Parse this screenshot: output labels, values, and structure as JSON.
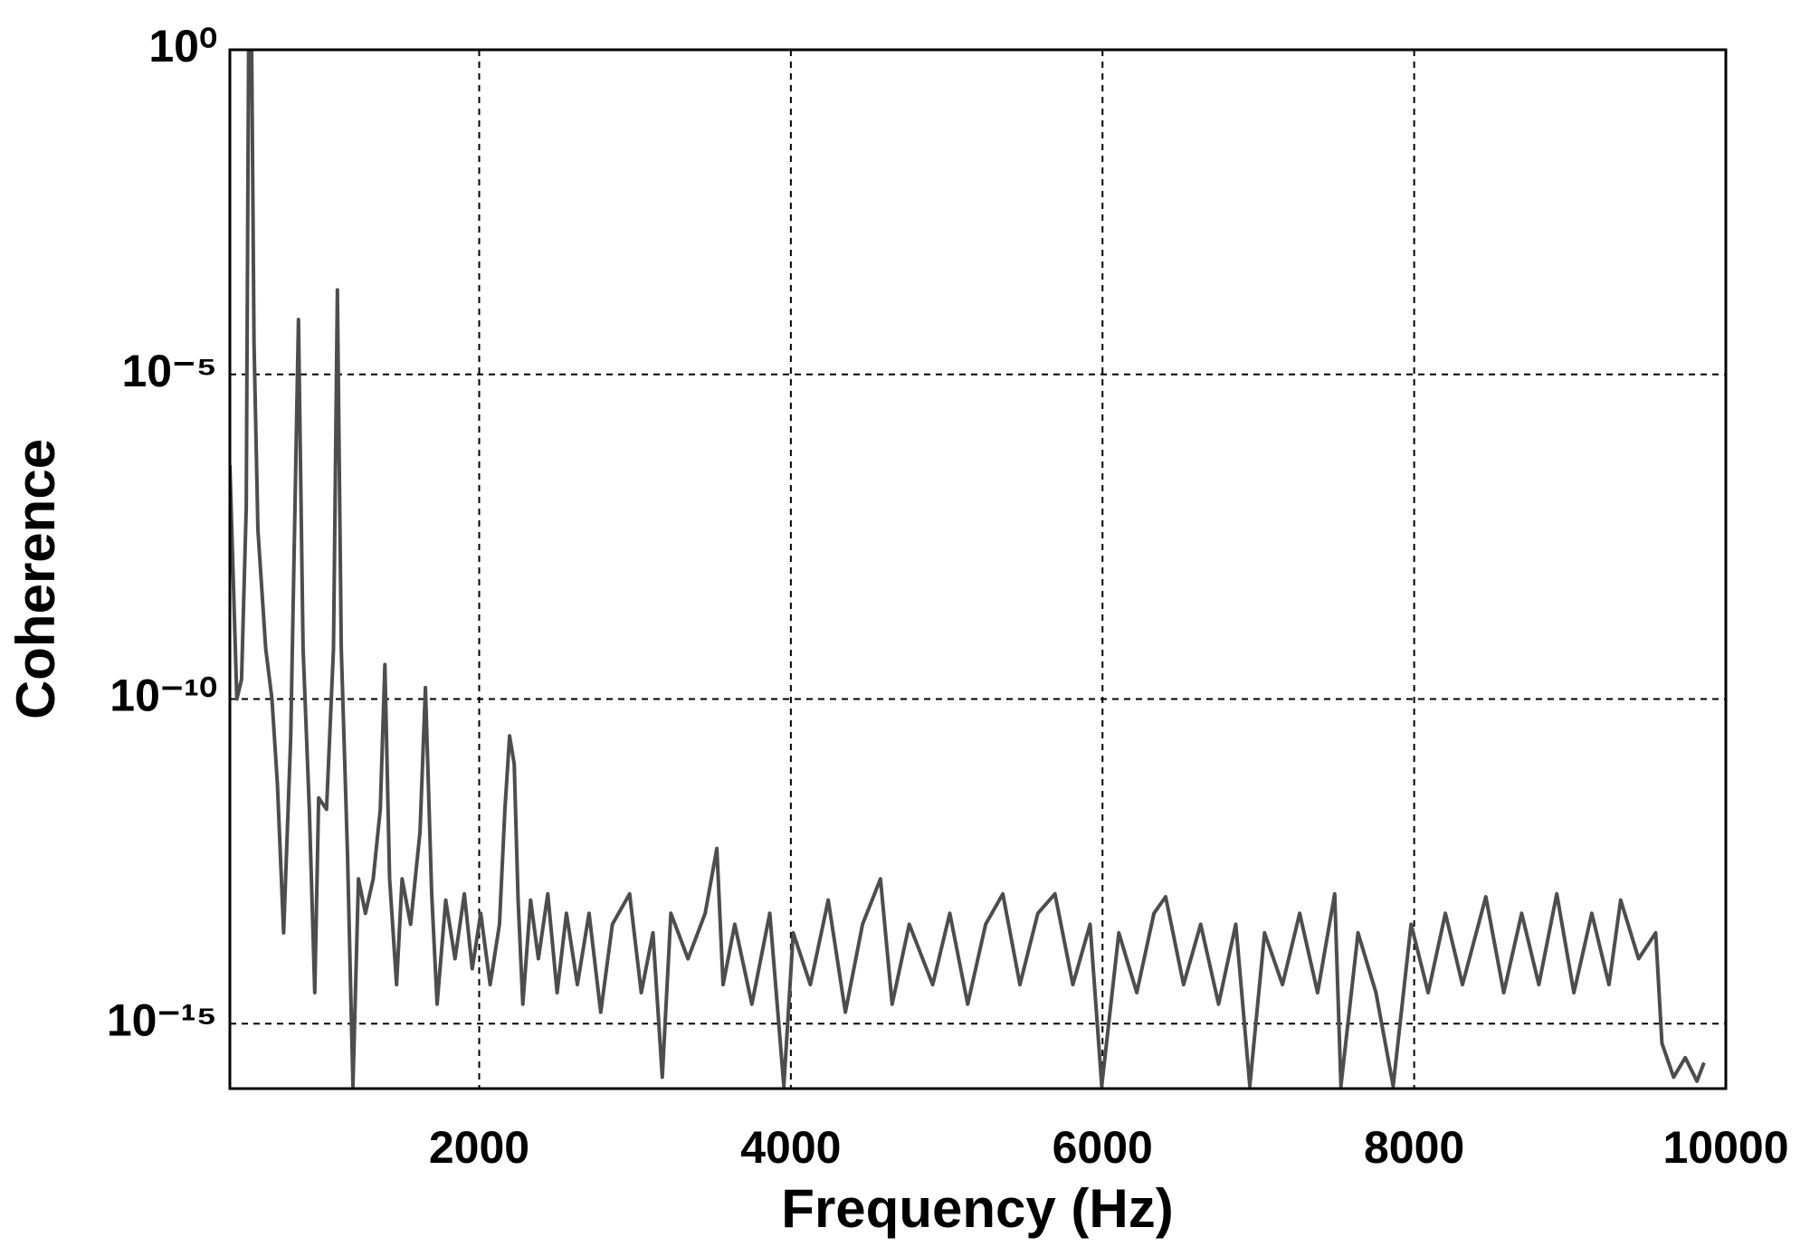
{
  "chart_data": {
    "type": "line",
    "x_label": "Frequency (Hz)",
    "y_label": "Coherence",
    "y_log": true,
    "grid": true,
    "xlim": [
      400,
      10000
    ],
    "ylim": [
      1e-16,
      1
    ],
    "xticks": [
      2000,
      4000,
      6000,
      8000,
      10000
    ],
    "yticks": [
      {
        "value": 1,
        "label": "10⁰"
      },
      {
        "value": 1e-05,
        "label": "10⁻⁵"
      },
      {
        "value": 1e-10,
        "label": "10⁻¹⁰"
      },
      {
        "value": 1e-15,
        "label": "10⁻¹⁵"
      }
    ],
    "series": [
      {
        "color": "#4d4d4d",
        "x": [
          400,
          445,
          475,
          505,
          520,
          540,
          555,
          580,
          630,
          670,
          705,
          745,
          790,
          840,
          870,
          910,
          945,
          970,
          1020,
          1065,
          1090,
          1115,
          1155,
          1190,
          1225,
          1270,
          1320,
          1365,
          1395,
          1425,
          1470,
          1505,
          1560,
          1620,
          1655,
          1695,
          1730,
          1785,
          1845,
          1905,
          1955,
          2010,
          2070,
          2130,
          2165,
          2195,
          2225,
          2250,
          2280,
          2330,
          2380,
          2440,
          2500,
          2560,
          2630,
          2705,
          2780,
          2855,
          2965,
          3040,
          3115,
          3175,
          3230,
          3340,
          3450,
          3525,
          3565,
          3640,
          3750,
          3865,
          3955,
          4015,
          4125,
          4240,
          4350,
          4460,
          4575,
          4650,
          4760,
          4910,
          5020,
          5135,
          5250,
          5360,
          5470,
          5585,
          5695,
          5810,
          5920,
          5995,
          6105,
          6220,
          6330,
          6405,
          6520,
          6630,
          6745,
          6855,
          6945,
          7040,
          7155,
          7265,
          7380,
          7490,
          7530,
          7640,
          7755,
          7865,
          7980,
          8090,
          8200,
          8310,
          8460,
          8575,
          8690,
          8800,
          8915,
          9025,
          9140,
          9250,
          9325,
          9440,
          9550,
          9590,
          9665,
          9740,
          9815,
          9860
        ],
        "values": [
          4e-07,
          1e-10,
          2e-10,
          9e-08,
          1,
          1,
          3e-05,
          4e-08,
          6e-10,
          1e-10,
          5e-12,
          2.5e-14,
          2.5e-11,
          7e-05,
          6e-10,
          2e-12,
          3e-15,
          3e-12,
          2e-12,
          6e-10,
          0.0002,
          6e-10,
          4e-13,
          1.1e-16,
          1.7e-13,
          5e-14,
          1.7e-13,
          2e-12,
          3.4e-10,
          1.7e-13,
          4e-15,
          1.7e-13,
          3.4e-14,
          9e-13,
          1.5e-10,
          1e-13,
          2e-15,
          8e-14,
          1e-14,
          1e-13,
          7e-15,
          5e-14,
          4e-15,
          3.4e-14,
          2e-12,
          2.7e-11,
          1e-11,
          8e-14,
          2e-15,
          8e-14,
          1e-14,
          1e-13,
          3e-15,
          5e-14,
          4e-15,
          5e-14,
          1.5e-15,
          3.4e-14,
          1e-13,
          3e-15,
          2.5e-14,
          1.5e-16,
          5e-14,
          1e-14,
          5e-14,
          5e-13,
          4e-15,
          3.4e-14,
          2e-15,
          5e-14,
          1.1e-16,
          2.5e-14,
          4e-15,
          8e-14,
          1.5e-15,
          3.4e-14,
          1.7e-13,
          2e-15,
          3.4e-14,
          4e-15,
          5e-14,
          2e-15,
          3.4e-14,
          1e-13,
          4e-15,
          5e-14,
          1e-13,
          4e-15,
          3.4e-14,
          1.1e-16,
          2.5e-14,
          3e-15,
          5e-14,
          9e-14,
          4e-15,
          3.4e-14,
          2e-15,
          3.4e-14,
          1.1e-16,
          2.5e-14,
          4e-15,
          5e-14,
          3e-15,
          1e-13,
          1.1e-16,
          2.5e-14,
          3e-15,
          1.1e-16,
          3.4e-14,
          3e-15,
          5e-14,
          4e-15,
          9e-14,
          3e-15,
          5e-14,
          4e-15,
          1e-13,
          3e-15,
          5e-14,
          4e-15,
          8e-14,
          1e-14,
          2.5e-14,
          5e-16,
          1.5e-16,
          3e-16,
          1.3e-16,
          2.5e-16
        ]
      }
    ]
  }
}
